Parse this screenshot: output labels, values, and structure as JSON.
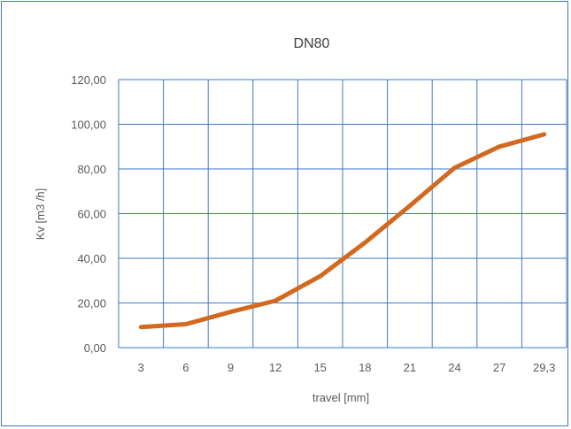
{
  "chart_data": {
    "type": "line",
    "title": "DN80",
    "xlabel": "travel [mm]",
    "ylabel": "Kv [m3 /h]",
    "categories": [
      "3",
      "6",
      "9",
      "12",
      "15",
      "18",
      "21",
      "24",
      "27",
      "29,3"
    ],
    "series": [
      {
        "values": [
          9.2,
          10.5,
          16,
          21,
          32,
          47,
          63.5,
          80.5,
          90,
          95.5
        ]
      }
    ],
    "ylim": [
      0,
      120
    ],
    "y_ticks": [
      "0,00",
      "20,00",
      "40,00",
      "60,00",
      "80,00",
      "100,00",
      "120,00"
    ],
    "grid": true,
    "legend": "none",
    "colors": {
      "line": "#d2691e",
      "grid": "#3b78c8",
      "frame": "#3b78c8"
    }
  }
}
